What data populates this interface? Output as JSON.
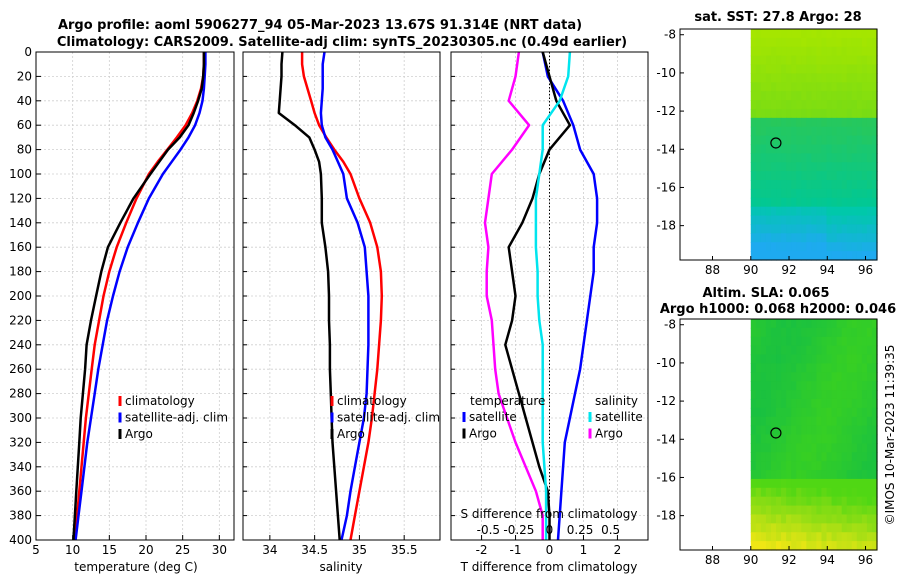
{
  "header": {
    "title_line1": "Argo profile: aoml 5906277_94 05-Mar-2023 13.67S 91.314E (NRT data)",
    "title_line2": "Climatology: CARS2009. Satellite-adj clim: synTS_20230305.nc (0.49d earlier)"
  },
  "colors": {
    "climatology": "#ff0000",
    "satellite": "#0000ff",
    "argo": "#000000",
    "temp_diff": "#ff00ff",
    "sal_diff": "#00e5ee"
  },
  "chart_data": [
    {
      "id": "temperature",
      "type": "line",
      "xlabel": "temperature (deg C)",
      "ylabel": "",
      "xlim": [
        5,
        32
      ],
      "ylim": [
        400,
        0
      ],
      "xticks": [
        5,
        10,
        15,
        20,
        25,
        30
      ],
      "yticks": [
        0,
        20,
        40,
        60,
        80,
        100,
        120,
        140,
        160,
        180,
        200,
        220,
        240,
        260,
        280,
        300,
        320,
        340,
        360,
        380,
        400
      ],
      "grid": true,
      "legend": [
        "climatology",
        "satellite-adj. clim",
        "Argo"
      ],
      "series": [
        {
          "name": "climatology",
          "color": "#ff0000",
          "depth": [
            0,
            10,
            20,
            30,
            40,
            50,
            60,
            70,
            80,
            90,
            100,
            120,
            140,
            160,
            180,
            200,
            220,
            240,
            260,
            280,
            300,
            320,
            340,
            360,
            380,
            400
          ],
          "values": [
            27.9,
            27.9,
            27.8,
            27.5,
            27.0,
            26.3,
            25.4,
            24.2,
            22.9,
            21.6,
            20.4,
            18.7,
            17.3,
            16.0,
            15.0,
            14.2,
            13.6,
            13.0,
            12.6,
            12.2,
            11.8,
            11.5,
            11.2,
            10.9,
            10.6,
            10.3
          ]
        },
        {
          "name": "satellite-adj. clim",
          "color": "#0000ff",
          "depth": [
            0,
            10,
            20,
            30,
            40,
            50,
            60,
            70,
            80,
            90,
            100,
            120,
            140,
            160,
            180,
            200,
            220,
            240,
            260,
            280,
            300,
            320,
            340,
            360,
            380,
            400
          ],
          "values": [
            28.1,
            28.1,
            28.0,
            27.9,
            27.7,
            27.3,
            26.7,
            25.8,
            24.7,
            23.5,
            22.3,
            20.4,
            18.9,
            17.5,
            16.4,
            15.5,
            14.7,
            14.1,
            13.5,
            13.0,
            12.5,
            12.0,
            11.6,
            11.2,
            10.8,
            10.4
          ]
        },
        {
          "name": "Argo",
          "color": "#000000",
          "depth": [
            0,
            10,
            20,
            30,
            40,
            50,
            60,
            70,
            80,
            90,
            100,
            120,
            140,
            160,
            180,
            200,
            220,
            240,
            260,
            280,
            300,
            320,
            340,
            360,
            380,
            400
          ],
          "values": [
            27.9,
            27.9,
            27.8,
            27.6,
            27.1,
            26.5,
            25.8,
            24.6,
            23.0,
            21.8,
            20.6,
            18.3,
            16.5,
            14.8,
            13.9,
            13.2,
            12.5,
            11.9,
            11.7,
            11.4,
            11.1,
            10.9,
            10.7,
            10.5,
            10.3,
            10.1
          ]
        }
      ]
    },
    {
      "id": "salinity",
      "type": "line",
      "xlabel": "salinity",
      "xlim": [
        33.7,
        35.9
      ],
      "ylim": [
        400,
        0
      ],
      "xticks": [
        34,
        34.5,
        35,
        35.5
      ],
      "grid": true,
      "legend": [
        "climatology",
        "satellite-adj. clim",
        "Argo"
      ],
      "series": [
        {
          "name": "climatology",
          "color": "#ff0000",
          "depth": [
            0,
            10,
            20,
            30,
            40,
            50,
            60,
            70,
            80,
            90,
            100,
            120,
            140,
            160,
            180,
            200,
            220,
            240,
            260,
            280,
            300,
            320,
            340,
            360,
            380,
            400
          ],
          "values": [
            34.36,
            34.36,
            34.38,
            34.42,
            34.46,
            34.5,
            34.55,
            34.63,
            34.72,
            34.82,
            34.9,
            35.0,
            35.12,
            35.2,
            35.24,
            35.25,
            35.24,
            35.22,
            35.2,
            35.17,
            35.14,
            35.1,
            35.05,
            35.0,
            34.95,
            34.9
          ]
        },
        {
          "name": "satellite-adj. clim",
          "color": "#0000ff",
          "depth": [
            0,
            10,
            20,
            30,
            40,
            50,
            60,
            70,
            80,
            90,
            100,
            120,
            140,
            160,
            180,
            200,
            220,
            240,
            260,
            280,
            300,
            320,
            340,
            360,
            380,
            400
          ],
          "values": [
            34.61,
            34.59,
            34.59,
            34.59,
            34.58,
            34.57,
            34.58,
            34.62,
            34.7,
            34.76,
            34.82,
            34.86,
            34.98,
            35.06,
            35.08,
            35.1,
            35.1,
            35.1,
            35.09,
            35.08,
            35.05,
            35.0,
            34.95,
            34.9,
            34.86,
            34.8
          ]
        },
        {
          "name": "Argo",
          "color": "#000000",
          "depth": [
            0,
            10,
            20,
            30,
            40,
            50,
            60,
            70,
            80,
            90,
            100,
            120,
            140,
            160,
            180,
            200,
            220,
            240,
            260,
            280,
            300,
            320,
            340,
            360,
            380,
            400
          ],
          "values": [
            34.14,
            34.13,
            34.13,
            34.12,
            34.11,
            34.1,
            34.28,
            34.44,
            34.5,
            34.55,
            34.57,
            34.58,
            34.58,
            34.62,
            34.65,
            34.66,
            34.66,
            34.67,
            34.67,
            34.68,
            34.69,
            34.7,
            34.72,
            34.74,
            34.76,
            34.78
          ]
        }
      ]
    },
    {
      "id": "difference",
      "type": "line",
      "xlabel": "T difference from climatology",
      "xlabel_top": "S difference from climatology",
      "xlim": [
        -2.9,
        2.9
      ],
      "ylim": [
        400,
        0
      ],
      "xticks": [
        -2,
        -1,
        0,
        1,
        2
      ],
      "xticks_top": [
        -0.5,
        -0.25,
        0,
        0.25,
        0.5
      ],
      "xticks_top_labels": [
        "-0.5",
        "-0.25",
        "0",
        "0.25",
        "0.5"
      ],
      "grid": true,
      "legend_temperature": {
        "title": "temperature",
        "items": [
          "satellite",
          "Argo"
        ]
      },
      "legend_salinity": {
        "title": "salinity",
        "items": [
          "satellite",
          "Argo"
        ]
      },
      "series": [
        {
          "name": "temperature satellite",
          "color": "#0000ff",
          "depth": [
            0,
            20,
            40,
            60,
            80,
            100,
            120,
            140,
            160,
            180,
            200,
            220,
            240,
            260,
            280,
            300,
            320,
            340,
            360,
            380,
            400
          ],
          "values": [
            -0.2,
            -0.05,
            0.4,
            0.7,
            0.9,
            1.3,
            1.4,
            1.4,
            1.3,
            1.3,
            1.2,
            1.1,
            1.0,
            0.9,
            0.75,
            0.6,
            0.45,
            0.4,
            0.35,
            0.3,
            0.25
          ]
        },
        {
          "name": "temperature Argo",
          "color": "#000000",
          "depth": [
            0,
            20,
            40,
            60,
            80,
            100,
            120,
            140,
            160,
            180,
            200,
            220,
            240,
            260,
            280,
            300,
            320,
            340,
            360,
            380,
            400
          ],
          "values": [
            -0.2,
            0.0,
            0.2,
            0.6,
            0.0,
            -0.3,
            -0.5,
            -0.8,
            -1.2,
            -1.1,
            -1.0,
            -1.1,
            -1.3,
            -1.1,
            -0.9,
            -0.7,
            -0.5,
            -0.3,
            -0.05,
            0.0,
            0.0
          ]
        },
        {
          "name": "salinity satellite",
          "color": "#00e5ee",
          "depth": [
            0,
            20,
            40,
            60,
            80,
            100,
            120,
            140,
            160,
            180,
            200,
            220,
            240,
            260,
            280,
            300,
            320,
            340,
            360,
            380,
            400
          ],
          "values": [
            0.6,
            0.55,
            0.3,
            -0.2,
            -0.2,
            -0.3,
            -0.4,
            -0.4,
            -0.4,
            -0.35,
            -0.35,
            -0.3,
            -0.2,
            -0.2,
            -0.2,
            -0.2,
            -0.2,
            -0.15,
            -0.1,
            -0.1,
            -0.1
          ]
        },
        {
          "name": "salinity Argo",
          "color": "#ff00ff",
          "depth": [
            0,
            20,
            40,
            60,
            80,
            100,
            120,
            140,
            160,
            180,
            200,
            220,
            240,
            260,
            280,
            300,
            320,
            340,
            360,
            380,
            400
          ],
          "values": [
            -0.9,
            -1.0,
            -1.2,
            -0.6,
            -1.1,
            -1.7,
            -1.8,
            -1.9,
            -1.8,
            -1.85,
            -1.85,
            -1.7,
            -1.65,
            -1.6,
            -1.5,
            -1.25,
            -1.0,
            -0.7,
            -0.4,
            -0.2,
            -0.2
          ]
        }
      ]
    },
    {
      "id": "sst_map",
      "type": "heatmap",
      "title": "sat. SST: 27.8 Argo: 28",
      "xlim": [
        86.3,
        96.6
      ],
      "ylim": [
        -19.8,
        -7.7
      ],
      "xticks": [
        88,
        90,
        92,
        94,
        96
      ],
      "yticks": [
        -8,
        -10,
        -12,
        -14,
        -16,
        -18
      ],
      "float_lon": 91.314,
      "float_lat": -13.67
    },
    {
      "id": "sla_map",
      "type": "heatmap",
      "title": "Altim. SLA: 0.065",
      "subtitle": "Argo h1000: 0.068 h2000: 0.046",
      "xlim": [
        86.3,
        96.6
      ],
      "ylim": [
        -19.8,
        -7.7
      ],
      "xticks": [
        88,
        90,
        92,
        94,
        96
      ],
      "yticks": [
        -8,
        -10,
        -12,
        -14,
        -16,
        -18
      ],
      "float_lon": 91.314,
      "float_lat": -13.67
    }
  ],
  "footer": {
    "credit": "©IMOS 10-Mar-2023 11:39:35"
  }
}
